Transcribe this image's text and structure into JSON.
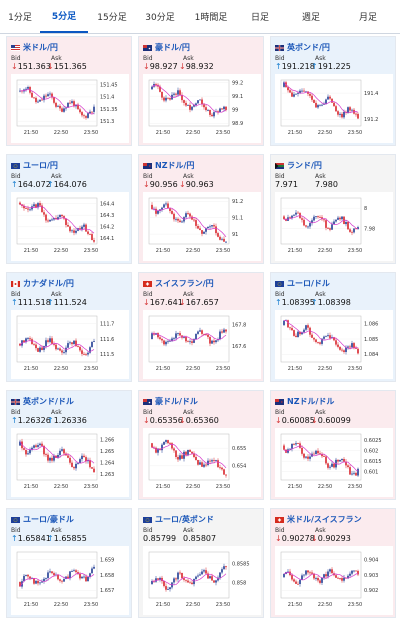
{
  "tabs": [
    {
      "label": "1分足",
      "active": false
    },
    {
      "label": "5分足",
      "active": true
    },
    {
      "label": "15分足",
      "active": false
    },
    {
      "label": "30分足",
      "active": false
    },
    {
      "label": "1時間足",
      "active": false
    },
    {
      "label": "日足",
      "active": false
    },
    {
      "label": "週足",
      "active": false
    },
    {
      "label": "月足",
      "active": false
    }
  ],
  "labels": {
    "bid": "Bid",
    "ask": "Ask"
  },
  "colors": {
    "up_arrow": "#1a7fd0",
    "down_arrow": "#d63a3a",
    "up_bg": "#e9f2fb",
    "down_bg": "#fbebee",
    "candle_up": "#1f3a93",
    "candle_down": "#d8232a",
    "ma": "#d63acb"
  },
  "cards": [
    {
      "name": "米ドル/円",
      "flag": "us",
      "bid": "151.363",
      "ask": "151.365",
      "dir": "down",
      "chart_data": {
        "type": "candlestick",
        "x_ticks": [
          "21:50",
          "22:50",
          "23:50"
        ],
        "y_ticks": [
          "151.45",
          "151.4",
          "151.35",
          "151.3"
        ],
        "ylim": [
          151.28,
          151.47
        ],
        "series": "seed1"
      }
    },
    {
      "name": "豪ドル/円",
      "flag": "au",
      "bid": "98.927",
      "ask": "98.932",
      "dir": "down",
      "chart_data": {
        "type": "candlestick",
        "x_ticks": [
          "21:50",
          "22:50",
          "23:50"
        ],
        "y_ticks": [
          "99.2",
          "99.1",
          "99",
          "98.9"
        ],
        "ylim": [
          98.88,
          99.22
        ],
        "series": "seed2"
      }
    },
    {
      "name": "英ポンド/円",
      "flag": "uk",
      "bid": "191.218",
      "ask": "191.225",
      "dir": "up",
      "chart_data": {
        "type": "candlestick",
        "x_ticks": [
          "21:50",
          "22:50",
          "23:50"
        ],
        "y_ticks": [
          "191.4",
          "191.2"
        ],
        "ylim": [
          191.15,
          191.5
        ],
        "series": "seed3"
      }
    },
    {
      "name": "ユーロ/円",
      "flag": "eu",
      "bid": "164.072",
      "ask": "164.076",
      "dir": "up",
      "chart_data": {
        "type": "candlestick",
        "x_ticks": [
          "21:50",
          "22:50",
          "23:50"
        ],
        "y_ticks": [
          "164.4",
          "164.3",
          "164.2",
          "164.1"
        ],
        "ylim": [
          164.05,
          164.45
        ],
        "series": "seed4"
      }
    },
    {
      "name": "NZドル/円",
      "flag": "nz",
      "bid": "90.956",
      "ask": "90.963",
      "dir": "down",
      "chart_data": {
        "type": "candlestick",
        "x_ticks": [
          "21:50",
          "22:50",
          "23:50"
        ],
        "y_ticks": [
          "91.2",
          "91.1",
          "91"
        ],
        "ylim": [
          90.94,
          91.22
        ],
        "series": "seed5"
      }
    },
    {
      "name": "ランド/円",
      "flag": "za",
      "bid": "7.971",
      "ask": "7.980",
      "dir": "flat",
      "chart_data": {
        "type": "candlestick",
        "x_ticks": [
          "21:50",
          "22:50",
          "23:50"
        ],
        "y_ticks": [
          "8",
          "7.98"
        ],
        "ylim": [
          7.965,
          8.01
        ],
        "series": "seed6"
      }
    },
    {
      "name": "カナダドル/円",
      "flag": "ca",
      "bid": "111.518",
      "ask": "111.524",
      "dir": "up",
      "chart_data": {
        "type": "candlestick",
        "x_ticks": [
          "21:50",
          "22:50",
          "23:50"
        ],
        "y_ticks": [
          "111.7",
          "111.6",
          "111.5"
        ],
        "ylim": [
          111.45,
          111.75
        ],
        "series": "seed7"
      }
    },
    {
      "name": "スイスフラン/円",
      "flag": "ch",
      "bid": "167.641",
      "ask": "167.657",
      "dir": "down",
      "chart_data": {
        "type": "candlestick",
        "x_ticks": [
          "21:50",
          "22:50",
          "23:50"
        ],
        "y_ticks": [
          "167.8",
          "167.6"
        ],
        "ylim": [
          167.45,
          167.88
        ],
        "series": "seed8"
      }
    },
    {
      "name": "ユーロ/ドル",
      "flag": "eu",
      "bid": "1.08395",
      "ask": "1.08398",
      "dir": "up",
      "chart_data": {
        "type": "candlestick",
        "x_ticks": [
          "21:50",
          "22:50",
          "23:50"
        ],
        "y_ticks": [
          "1.086",
          "1.085",
          "1.084"
        ],
        "ylim": [
          1.0835,
          1.0865
        ],
        "series": "seed9"
      }
    },
    {
      "name": "英ポンド/ドル",
      "flag": "uk",
      "bid": "1.26326",
      "ask": "1.26336",
      "dir": "up",
      "chart_data": {
        "type": "candlestick",
        "x_ticks": [
          "21:50",
          "22:50",
          "23:50"
        ],
        "y_ticks": [
          "1.266",
          "1.265",
          "1.264",
          "1.263"
        ],
        "ylim": [
          1.2625,
          1.2665
        ],
        "series": "seed10"
      }
    },
    {
      "name": "豪ドル/ドル",
      "flag": "au",
      "bid": "0.65356",
      "ask": "0.65360",
      "dir": "down",
      "chart_data": {
        "type": "candlestick",
        "x_ticks": [
          "21:50",
          "22:50",
          "23:50"
        ],
        "y_ticks": [
          "0.655",
          "0.654"
        ],
        "ylim": [
          0.6532,
          0.6558
        ],
        "series": "seed11"
      }
    },
    {
      "name": "NZドル/ドル",
      "flag": "nz",
      "bid": "0.60085",
      "ask": "0.60099",
      "dir": "down",
      "chart_data": {
        "type": "candlestick",
        "x_ticks": [
          "21:50",
          "22:50",
          "23:50"
        ],
        "y_ticks": [
          "0.6025",
          "0.602",
          "0.6015",
          "0.601"
        ],
        "ylim": [
          0.6006,
          0.6028
        ],
        "series": "seed12"
      }
    },
    {
      "name": "ユーロ/豪ドル",
      "flag": "eu",
      "bid": "1.65841",
      "ask": "1.65855",
      "dir": "up",
      "chart_data": {
        "type": "candlestick",
        "x_ticks": [
          "21:50",
          "22:50",
          "23:50"
        ],
        "y_ticks": [
          "1.659",
          "1.658",
          "1.657"
        ],
        "ylim": [
          1.6565,
          1.6595
        ],
        "series": "seed13"
      }
    },
    {
      "name": "ユーロ/英ポンド",
      "flag": "eu",
      "bid": "0.85799",
      "ask": "0.85807",
      "dir": "flat",
      "chart_data": {
        "type": "candlestick",
        "x_ticks": [
          "21:50",
          "22:50",
          "23:50"
        ],
        "y_ticks": [
          "0.8585",
          "0.858"
        ],
        "ylim": [
          0.8576,
          0.8588
        ],
        "series": "seed14"
      }
    },
    {
      "name": "米ドル/スイスフラン",
      "flag": "ch",
      "bid": "0.90278",
      "ask": "0.90293",
      "dir": "down",
      "chart_data": {
        "type": "candlestick",
        "x_ticks": [
          "21:50",
          "22:50",
          "23:50"
        ],
        "y_ticks": [
          "0.904",
          "0.903",
          "0.902"
        ],
        "ylim": [
          0.9015,
          0.9045
        ],
        "series": "seed15"
      }
    }
  ]
}
